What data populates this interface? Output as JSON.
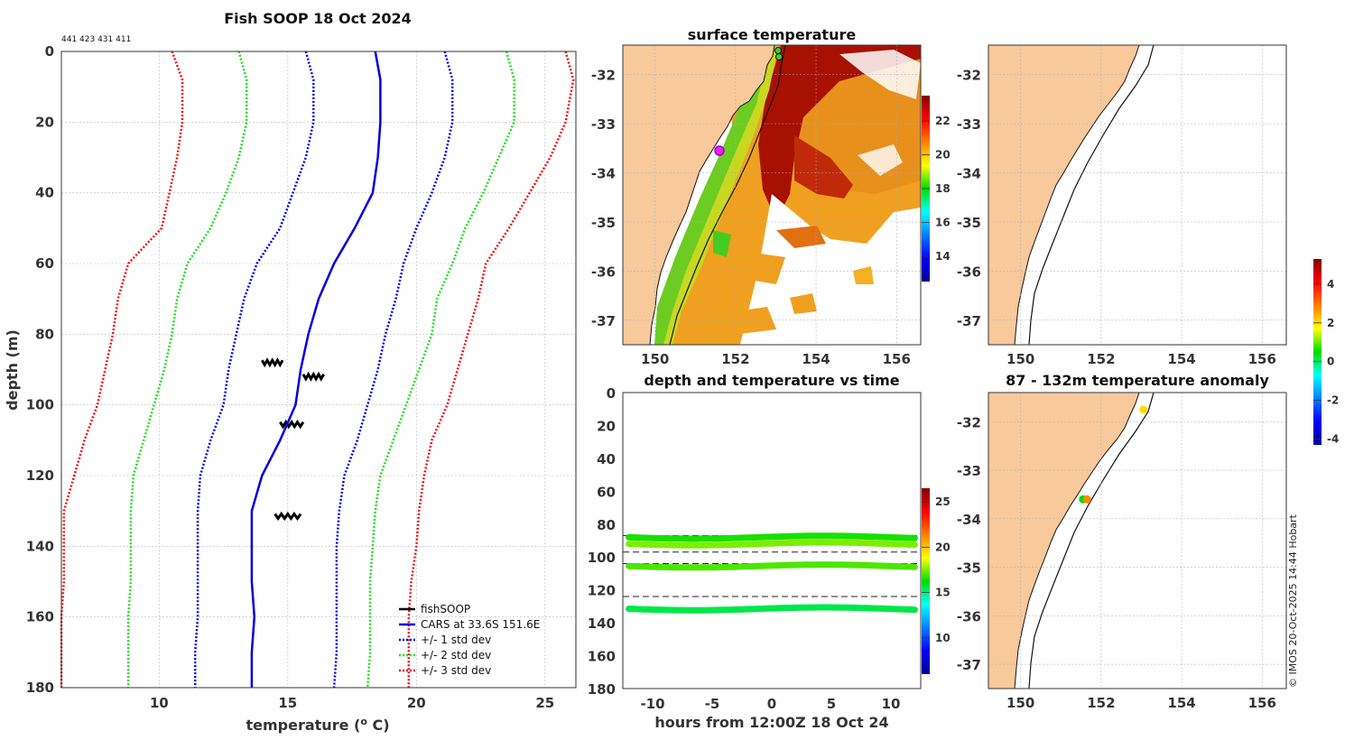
{
  "colors": {
    "land": "#f8c99a",
    "cars": "#0000e0",
    "std1": "#0000e0",
    "std2": "#22dd22",
    "std3": "#ee1111",
    "obs": "#000000"
  },
  "chart_data": [
    {
      "type": "line",
      "id": "profile",
      "title": "Fish SOOP 18 Oct 2024",
      "subtitle": "441 423 431 411",
      "xlabel": "temperature (",
      "xlabel_sup": "o",
      "xlabel_tail": " C)",
      "ylabel": "depth (m)",
      "xlim": [
        6.2,
        26.2
      ],
      "ylim": [
        0,
        180
      ],
      "xticks": [
        10,
        15,
        20,
        25
      ],
      "yticks": [
        0,
        20,
        40,
        60,
        80,
        100,
        120,
        140,
        160,
        180
      ],
      "depths": [
        0,
        8,
        20,
        30,
        40,
        50,
        60,
        70,
        80,
        90,
        100,
        110,
        120,
        130,
        140,
        150,
        160,
        170,
        180
      ],
      "series": [
        {
          "name": "fishSOOP",
          "style": "obs",
          "segments": [
            {
              "depth": 88,
              "tmin": 14.0,
              "tmax": 14.8
            },
            {
              "depth": 92,
              "tmin": 15.6,
              "tmax": 16.4
            },
            {
              "depth": 105.5,
              "tmin": 14.7,
              "tmax": 15.6
            },
            {
              "depth": 131.5,
              "tmin": 14.5,
              "tmax": 15.5
            }
          ]
        },
        {
          "name": "CARS at 33.6S 151.6E",
          "style": "cars",
          "values": [
            18.4,
            18.6,
            18.6,
            18.5,
            18.3,
            17.6,
            16.8,
            16.2,
            15.8,
            15.5,
            15.3,
            14.7,
            14.0,
            13.6,
            13.6,
            13.6,
            13.7,
            13.6,
            13.6
          ]
        },
        {
          "name": "+/- 1 std dev",
          "style": "std1",
          "values": [
            [
              15.7,
              21.1
            ],
            [
              16.0,
              21.4
            ],
            [
              16.0,
              21.4
            ],
            [
              15.7,
              21.1
            ],
            [
              15.2,
              20.6
            ],
            [
              14.7,
              20.0
            ],
            [
              13.8,
              19.5
            ],
            [
              13.3,
              19.2
            ],
            [
              13.0,
              18.8
            ],
            [
              12.7,
              18.5
            ],
            [
              12.5,
              18.1
            ],
            [
              12.0,
              17.7
            ],
            [
              11.6,
              17.2
            ],
            [
              11.5,
              17.0
            ],
            [
              11.5,
              16.9
            ],
            [
              11.5,
              16.9
            ],
            [
              11.5,
              16.9
            ],
            [
              11.4,
              16.9
            ],
            [
              11.4,
              16.8
            ]
          ]
        },
        {
          "name": "+/- 2 std dev",
          "style": "std2",
          "values": [
            [
              13.1,
              23.5
            ],
            [
              13.4,
              23.8
            ],
            [
              13.4,
              23.8
            ],
            [
              13.1,
              23.2
            ],
            [
              12.6,
              22.6
            ],
            [
              12.0,
              21.9
            ],
            [
              11.1,
              21.4
            ],
            [
              10.7,
              20.8
            ],
            [
              10.5,
              20.6
            ],
            [
              10.2,
              20.1
            ],
            [
              9.8,
              19.6
            ],
            [
              9.4,
              19.1
            ],
            [
              9.0,
              18.6
            ],
            [
              8.9,
              18.4
            ],
            [
              8.9,
              18.3
            ],
            [
              8.9,
              18.2
            ],
            [
              8.8,
              18.2
            ],
            [
              8.8,
              18.2
            ],
            [
              8.8,
              18.1
            ]
          ]
        },
        {
          "name": "+/- 3 std dev",
          "style": "std3",
          "values": [
            [
              10.5,
              25.8
            ],
            [
              10.9,
              26.1
            ],
            [
              10.9,
              25.8
            ],
            [
              10.7,
              25.2
            ],
            [
              10.4,
              24.4
            ],
            [
              10.1,
              23.6
            ],
            [
              8.8,
              22.7
            ],
            [
              8.4,
              22.4
            ],
            [
              8.2,
              22.0
            ],
            [
              7.9,
              21.6
            ],
            [
              7.6,
              21.2
            ],
            [
              7.1,
              20.6
            ],
            [
              6.7,
              20.3
            ],
            [
              6.3,
              20.1
            ],
            [
              6.3,
              20.0
            ],
            [
              6.3,
              19.8
            ],
            [
              6.2,
              19.7
            ],
            [
              6.2,
              19.7
            ],
            [
              6.2,
              19.7
            ]
          ]
        }
      ],
      "legend_position": "bottom-right"
    },
    {
      "type": "heatmap",
      "id": "surface_map",
      "title": "surface temperature",
      "xlim": [
        149.2,
        156.6
      ],
      "ylim": [
        -37.5,
        -31.4
      ],
      "xticks": [
        150,
        152,
        154,
        156
      ],
      "yticks": [
        -32,
        -33,
        -34,
        -35,
        -36,
        -37
      ],
      "colorbar_ticks": [
        14,
        16,
        18,
        20,
        22
      ],
      "colorbar_range": [
        12.5,
        23.5
      ],
      "marker": {
        "lon": 151.6,
        "lat": -33.6
      }
    },
    {
      "type": "scatter",
      "id": "depth_time",
      "title": "depth and temperature vs time",
      "xlabel": "hours from 12:00Z 18 Oct 24",
      "xlim": [
        -12.5,
        12.5
      ],
      "ylim": [
        0,
        180
      ],
      "xticks": [
        -10,
        -5,
        0,
        5,
        10
      ],
      "yticks": [
        0,
        20,
        40,
        60,
        80,
        100,
        120,
        140,
        160,
        180
      ],
      "colorbar_ticks": [
        10,
        15,
        20,
        25
      ],
      "colorbar_range": [
        6,
        26.5
      ],
      "dashed_depths": [
        87,
        97,
        104,
        124
      ],
      "tracks": [
        {
          "depth": 88,
          "temp": 16.5
        },
        {
          "depth": 92,
          "temp": 17.5
        },
        {
          "depth": 105.5,
          "temp": 17.0
        },
        {
          "depth": 131.5,
          "temp": 15.5
        }
      ]
    },
    {
      "type": "heatmap",
      "id": "blank_map",
      "title": "",
      "xlim": [
        149.2,
        156.6
      ],
      "ylim": [
        -37.5,
        -31.4
      ],
      "xticks": [
        150,
        152,
        154,
        156
      ],
      "yticks": [
        -32,
        -33,
        -34,
        -35,
        -36,
        -37
      ]
    },
    {
      "type": "scatter",
      "id": "anomaly_map",
      "title": "87 - 132m temperature anomaly",
      "xlim": [
        149.2,
        156.6
      ],
      "ylim": [
        -37.5,
        -31.4
      ],
      "xticks": [
        150,
        152,
        154,
        156
      ],
      "yticks": [
        -32,
        -33,
        -34,
        -35,
        -36,
        -37
      ],
      "colorbar_ticks": [
        -4,
        -2,
        0,
        2,
        4
      ],
      "colorbar_range": [
        -4.3,
        5.3
      ],
      "points": [
        {
          "lon": 153.05,
          "lat": -31.75,
          "anomaly": 2.0
        },
        {
          "lon": 151.55,
          "lat": -33.6,
          "anomaly": 0.5
        },
        {
          "lon": 151.65,
          "lat": -33.6,
          "anomaly": 2.8
        }
      ]
    }
  ],
  "credit": "© IMOS 20-Oct-2025 14:44 Hobart"
}
